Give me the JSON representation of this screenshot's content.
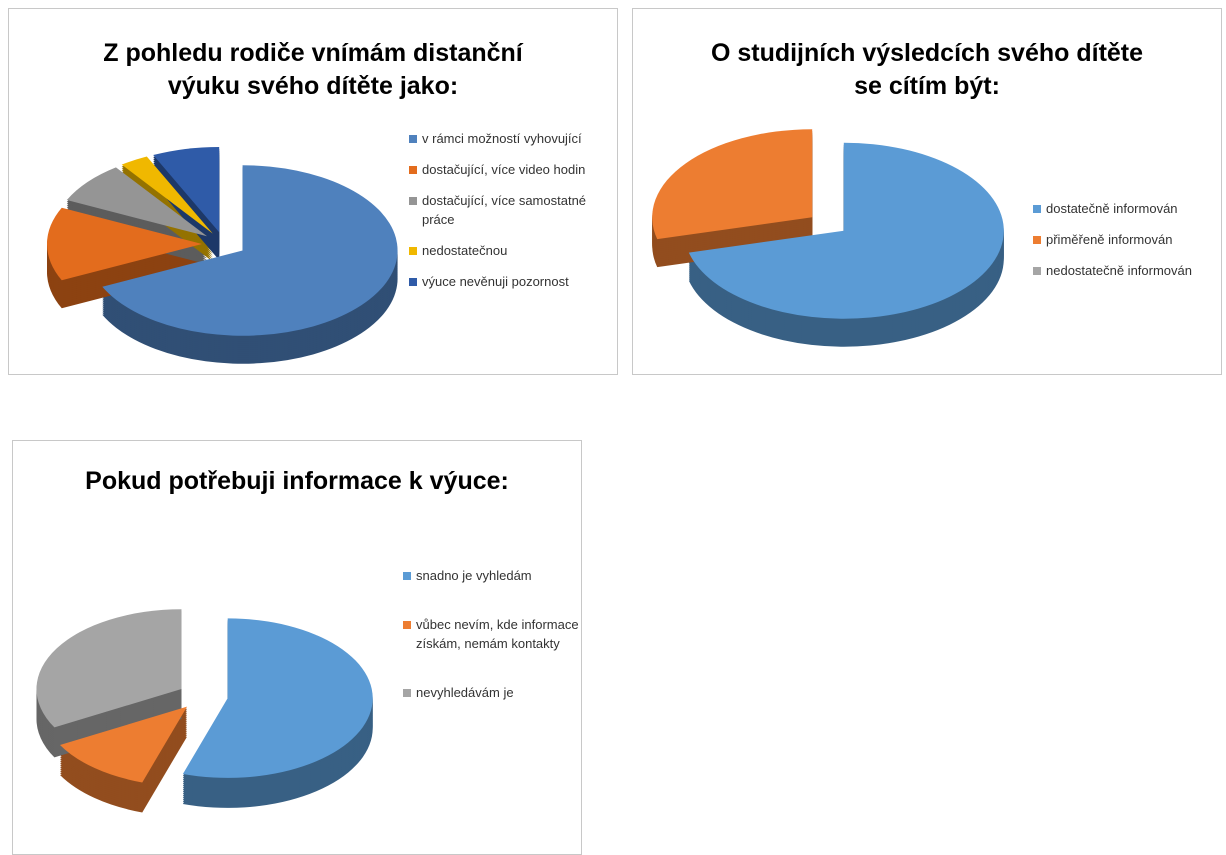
{
  "chart_data": [
    {
      "type": "pie",
      "title": "Z pohledu rodiče vnímám distanční výuku svého dítěte jako:",
      "categories": [
        "v rámci možností vyhovující",
        "dostačující, více video hodin",
        "dostačující, více samostatné práce",
        "nedostatečnou",
        "výuce nevěnuji pozornost"
      ],
      "values": [
        68,
        14,
        8,
        3,
        7
      ],
      "colors": [
        "#4f81bd",
        "#e36c1d",
        "#959595",
        "#f0b800",
        "#2f5ba8"
      ]
    },
    {
      "type": "pie",
      "title": "O studijních výsledcích svého dítěte se cítím být:",
      "categories": [
        "dostatečně informován",
        "přiměřeně informován",
        "nedostatečně informován"
      ],
      "values": [
        71,
        29,
        0
      ],
      "colors": [
        "#5b9bd5",
        "#ed7d31",
        "#a5a5a5"
      ]
    },
    {
      "type": "pie",
      "title": "Pokud potřebuji informace k výuce:",
      "categories": [
        "snadno je vyhledám",
        "vůbec nevím, kde informace získám, nemám kontakty",
        "nevyhledávám je"
      ],
      "values": [
        55,
        12,
        33
      ],
      "colors": [
        "#5b9bd5",
        "#ed7d31",
        "#a5a5a5"
      ]
    }
  ]
}
